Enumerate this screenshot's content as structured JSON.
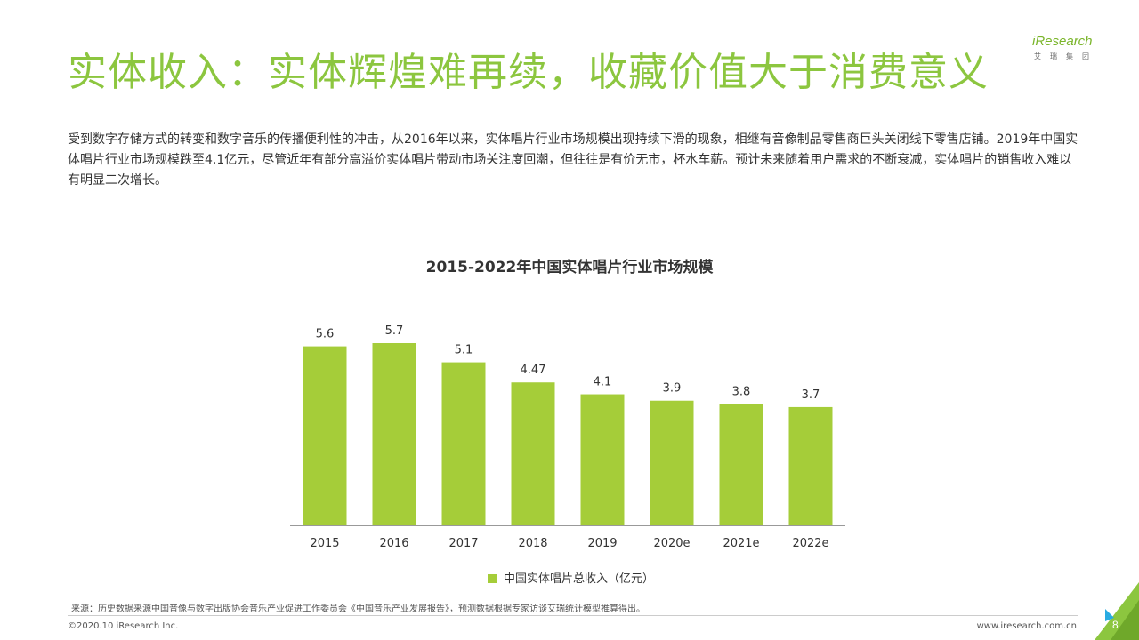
{
  "title": "实体收入：实体辉煌难再续，收藏价值大于消费意义",
  "logo": {
    "text": "iResearch",
    "sub": "艾瑞集团"
  },
  "intro": "受到数字存储方式的转变和数字音乐的传播便利性的冲击，从2016年以来，实体唱片行业市场规模出现持续下滑的现象，相继有音像制品零售商巨头关闭线下零售店铺。2019年中国实体唱片行业市场规模跌至4.1亿元，尽管近年有部分高溢价实体唱片带动市场关注度回潮，但往往是有价无市，杯水车薪。预计未来随着用户需求的不断衰减，实体唱片的销售收入难以有明显二次增长。",
  "chart_data": {
    "type": "bar",
    "title": "2015-2022年中国实体唱片行业市场规模",
    "categories": [
      "2015",
      "2016",
      "2017",
      "2018",
      "2019",
      "2020e",
      "2021e",
      "2022e"
    ],
    "values": [
      5.6,
      5.7,
      5.1,
      4.47,
      4.1,
      3.9,
      3.8,
      3.7
    ],
    "value_labels": [
      "5.6",
      "5.7",
      "5.1",
      "4.47",
      "4.1",
      "3.9",
      "3.8",
      "3.7"
    ],
    "series_name": "中国实体唱片总收入（亿元）",
    "ylim": [
      0,
      5.7
    ],
    "color": "#a5cd39",
    "legend_position": "bottom-center",
    "grid": false
  },
  "footer": {
    "source": "来源：历史数据来源中国音像与数字出版协会音乐产业促进工作委员会《中国音乐产业发展报告》，预测数据根据专家访谈艾瑞统计模型推算得出。",
    "copyright": "©2020.10 iResearch Inc.",
    "website": "www.iresearch.com.cn",
    "page_number": "8"
  },
  "colors": {
    "accent": "#8cc63f",
    "bar": "#a5cd39"
  }
}
